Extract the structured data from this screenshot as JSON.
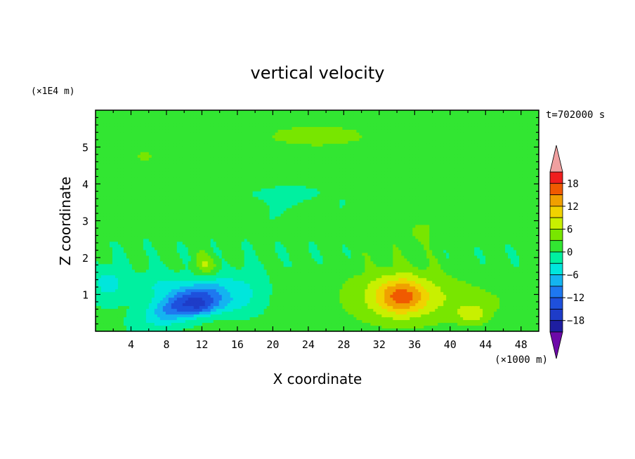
{
  "chart_data": {
    "type": "heatmap",
    "title": "vertical velocity",
    "xlabel": "X coordinate",
    "ylabel": "Z coordinate",
    "x_scale_label": "(×1000 m)",
    "y_scale_label": "(×1E4 m)",
    "time_label": "t=702000 s",
    "xlim": [
      0,
      50
    ],
    "ylim": [
      0,
      6
    ],
    "x_ticks": [
      4,
      8,
      12,
      16,
      20,
      24,
      28,
      32,
      36,
      40,
      44,
      48
    ],
    "y_ticks": [
      1,
      2,
      3,
      4,
      5
    ],
    "colorbar": {
      "ticks": [
        18,
        12,
        6,
        0,
        -6,
        -12,
        -18
      ],
      "levels": [
        -21,
        -18,
        -15,
        -12,
        -9,
        -6,
        -3,
        0,
        3,
        6,
        9,
        12,
        15,
        18,
        21
      ],
      "colors": [
        "#6d0aa8",
        "#1e1ea0",
        "#1e3cc8",
        "#1e50dc",
        "#1e78f0",
        "#14b4f0",
        "#00e6dc",
        "#00f0a0",
        "#32e632",
        "#78e600",
        "#c8f000",
        "#f0d200",
        "#f0a000",
        "#f05a00",
        "#f01e1e",
        "#f0a0a0"
      ]
    },
    "features": [
      {
        "x": 10.5,
        "z": 0.8,
        "sx": 4.2,
        "sz": 0.42,
        "tilt": -0.08,
        "w": -15
      },
      {
        "x": 12.0,
        "z": 0.62,
        "sx": 1.5,
        "sz": 0.22,
        "tilt": 0,
        "w": -5
      },
      {
        "x": 14.5,
        "z": 0.75,
        "sx": 2.5,
        "sz": 0.3,
        "tilt": 0,
        "w": -5
      },
      {
        "x": 7.5,
        "z": 1.25,
        "sx": 3.0,
        "sz": 0.4,
        "tilt": 0,
        "w": -4
      },
      {
        "x": 17.5,
        "z": 1.1,
        "sx": 2.0,
        "sz": 0.6,
        "tilt": 0,
        "w": -3
      },
      {
        "x": 1.5,
        "z": 1.3,
        "sx": 2.0,
        "sz": 0.5,
        "tilt": 0,
        "w": -5
      },
      {
        "x": 12.5,
        "z": 1.8,
        "sx": 1.3,
        "sz": 0.3,
        "tilt": 0,
        "w": 5
      },
      {
        "x": 34.5,
        "z": 0.95,
        "sx": 6.5,
        "sz": 0.8,
        "tilt": 0,
        "w": 7
      },
      {
        "x": 34.5,
        "z": 0.95,
        "sx": 2.6,
        "sz": 0.45,
        "tilt": 0,
        "w": 9
      },
      {
        "x": 42.5,
        "z": 0.45,
        "sx": 1.6,
        "sz": 0.25,
        "tilt": 0,
        "w": 6
      },
      {
        "x": 44.0,
        "z": 0.8,
        "sx": 6.0,
        "sz": 0.5,
        "tilt": 0,
        "w": 2
      },
      {
        "x": 25.0,
        "z": 5.3,
        "sx": 9.0,
        "sz": 0.45,
        "tilt": 0,
        "w": 3
      },
      {
        "x": 10.0,
        "z": 4.05,
        "sx": 7.0,
        "sz": 0.55,
        "tilt": 0,
        "w": 2
      },
      {
        "x": 5.5,
        "z": 4.75,
        "sx": 1.0,
        "sz": 0.1,
        "tilt": 0,
        "w": 4
      },
      {
        "x": 20.0,
        "z": 3.7,
        "sx": 8.0,
        "sz": 0.35,
        "tilt": 0,
        "w": -1.5
      },
      {
        "x": 38.0,
        "z": 2.7,
        "sx": 9.0,
        "sz": 0.4,
        "tilt": 0,
        "w": 2
      }
    ]
  }
}
